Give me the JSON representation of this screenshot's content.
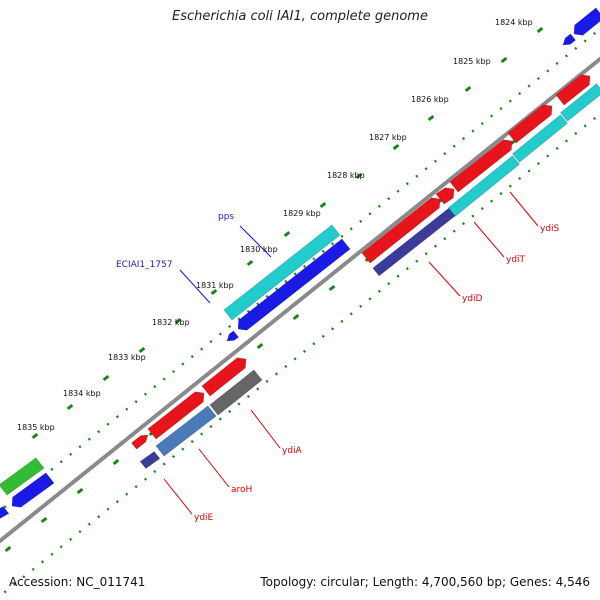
{
  "title": "Escherichia coli IAI1, complete genome",
  "footer": {
    "accession": "Accession: NC_011741",
    "summary": "Topology: circular; Length: 4,700,560 bp; Genes: 4,546"
  },
  "colors": {
    "backbone": "#8a8a8a",
    "tick": "#118811",
    "forward_cds": "#e8141c",
    "reverse_cds": "#1a1ae6",
    "cyan_feature": "#22cccc",
    "green_feature": "#33bb33",
    "gray_feature": "#666666",
    "steel_feature": "#4a7ab8",
    "navy_feature": "#3b3b9a",
    "red_label": "#dd0000",
    "blue_label": "#1a1acc"
  },
  "scale": {
    "unit": "kbp",
    "labels": [
      "1824 kbp",
      "1825 kbp",
      "1826 kbp",
      "1827 kbp",
      "1828 kbp",
      "1829 kbp",
      "1830 kbp",
      "1831 kbp",
      "1832 kbp",
      "1833 kbp",
      "1834 kbp",
      "1835 kbp"
    ]
  },
  "gene_labels": [
    {
      "name": "ydiS",
      "color": "red"
    },
    {
      "name": "ydiT",
      "color": "red"
    },
    {
      "name": "ydiD",
      "color": "red"
    },
    {
      "name": "ydiA",
      "color": "red"
    },
    {
      "name": "aroH",
      "color": "red"
    },
    {
      "name": "ydiE",
      "color": "red"
    },
    {
      "name": "pps",
      "color": "blue"
    },
    {
      "name": "ECIAI1_1757",
      "color": "blue"
    }
  ]
}
